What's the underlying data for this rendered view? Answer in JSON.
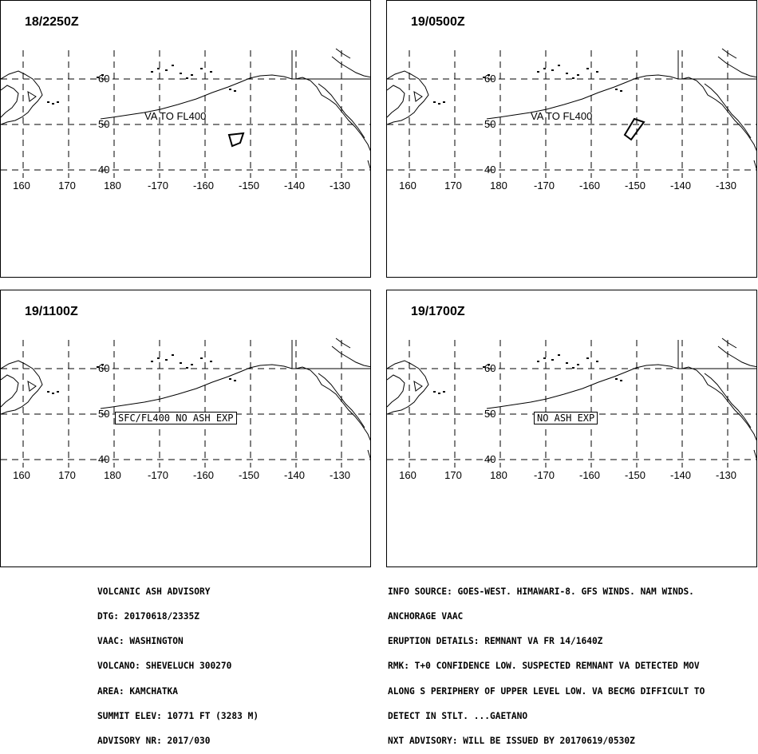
{
  "panels": [
    {
      "title": "18/2250Z",
      "label": "VA TO FL400",
      "label_boxed": false,
      "has_polygon": true,
      "polygon_id": "p1"
    },
    {
      "title": "19/0500Z",
      "label": "VA TO FL400",
      "label_boxed": false,
      "has_polygon": true,
      "polygon_id": "p2"
    },
    {
      "title": "19/1100Z",
      "label": "SFC/FL400 NO ASH EXP",
      "label_boxed": true,
      "has_polygon": false
    },
    {
      "title": "19/1700Z",
      "label": "NO ASH EXP",
      "label_boxed": true,
      "has_polygon": false
    }
  ],
  "map": {
    "longitude_labels": [
      "160",
      "170",
      "180",
      "-170",
      "-160",
      "-150",
      "-140",
      "-130"
    ],
    "latitude_labels": [
      "60",
      "50",
      "40"
    ]
  },
  "advisory_left": [
    "VOLCANIC ASH ADVISORY",
    "DTG: 20170618/2335Z",
    "VAAC: WASHINGTON",
    "VOLCANO: SHEVELUCH 300270",
    "AREA: KAMCHATKA",
    "SUMMIT ELEV: 10771 FT (3283 M)",
    "ADVISORY NR: 2017/030"
  ],
  "advisory_right": [
    "INFO SOURCE: GOES-WEST. HIMAWARI-8. GFS WINDS. NAM WINDS.",
    "ANCHORAGE VAAC",
    "ERUPTION DETAILS: REMNANT VA FR 14/1640Z",
    "RMK: T+0 CONFIDENCE LOW. SUSPECTED REMNANT VA DETECTED MOV",
    "ALONG S PERIPHERY OF UPPER LEVEL LOW. VA BECMG DIFFICULT TO",
    "DETECT IN STLT. ...GAETANO",
    "NXT ADVISORY: WILL BE ISSUED BY 20170619/0530Z"
  ]
}
